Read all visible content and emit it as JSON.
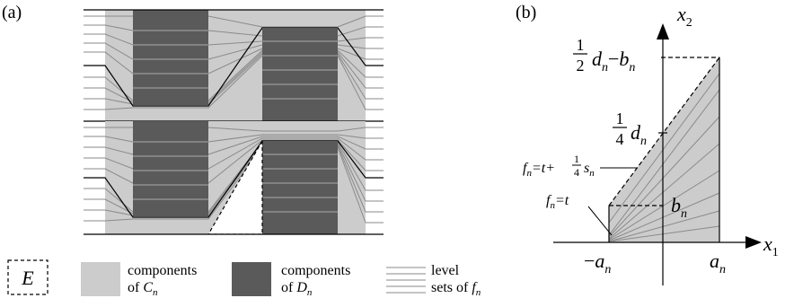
{
  "panel_a": {
    "label": "(a)"
  },
  "panel_b": {
    "label": "(b)"
  },
  "axes": {
    "x_var": "x",
    "x_sub": "1",
    "y_var": "x",
    "y_sub": "2"
  },
  "ticks": {
    "neg_a": {
      "minus": "−",
      "var": "a",
      "sub": "n"
    },
    "pos_a": {
      "var": "a",
      "sub": "n"
    },
    "b": {
      "var": "b",
      "sub": "n"
    },
    "quarter_d": {
      "num": "1",
      "den": "4",
      "var": "d",
      "sub": "n"
    },
    "half_d": {
      "num": "1",
      "den": "2",
      "var": "d",
      "sub": "n",
      "minus": "−",
      "var2": "b",
      "sub2": "n"
    }
  },
  "callouts": {
    "ft": {
      "f": "f",
      "sub": "n",
      "rest": "=t"
    },
    "ft_quarter": {
      "f": "f",
      "sub": "n",
      "rest": "=t+",
      "num": "1",
      "den": "4",
      "s": "s",
      "s_sub": "n"
    }
  },
  "legend": {
    "e_symbol": "E",
    "c_line1": "components",
    "c_line2": "of ",
    "c_var": "C",
    "c_sub": "n",
    "d_line1": "components",
    "d_line2": "of ",
    "d_var": "D",
    "d_sub": "n",
    "level_line1": "level",
    "level_line2": "sets of ",
    "level_var": "f",
    "level_sub": "n"
  },
  "colors": {
    "light_gray": "#cccccc",
    "dark_gray": "#5a5a5a",
    "level_line": "#8a8a8a",
    "black": "#000000",
    "white": "#ffffff"
  }
}
